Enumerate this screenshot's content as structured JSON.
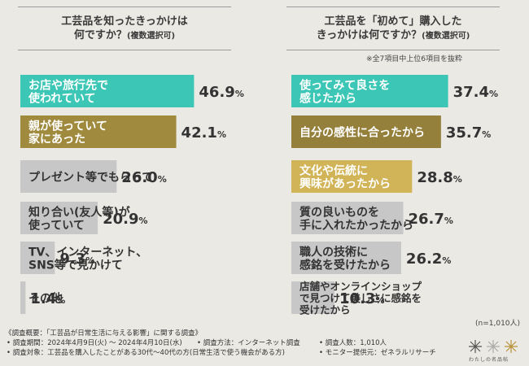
{
  "titles": {
    "left_line1": "工芸品を知ったきっかけは",
    "left_line2": "何ですか？",
    "left_suffix": "(複数選択可)",
    "right_line1": "工芸品を「初めて」購入した",
    "right_line2": "きっかけは何ですか？",
    "right_suffix": "(複数選択可)"
  },
  "notes": {
    "top7": "※全7項目中上位6項目を抜粋",
    "n": "(n=1,010人)"
  },
  "colors": {
    "rank1": "#3cc6b5",
    "rank2": "#9f8a3e",
    "rank2_right": "#94803a",
    "rank3_right": "#d1b457",
    "other": "#c7c7c7",
    "background": "#ebe9e4"
  },
  "chart_data": [
    {
      "type": "bar",
      "orientation": "horizontal",
      "title": "工芸品を知ったきっかけは何ですか？(複数選択可)",
      "categories": [
        [
          "お店や旅行先で",
          "使われていて"
        ],
        [
          "親が使っていて",
          "家にあった"
        ],
        [
          "プレゼント等でもらって"
        ],
        [
          "知り合い(友人等)が",
          "使っていて"
        ],
        [
          "TV、インターネット、",
          "SNS等で見かけて"
        ],
        [
          "その他"
        ]
      ],
      "values": [
        46.9,
        42.1,
        26.0,
        20.9,
        9.3,
        1.4
      ],
      "value_labels": [
        "46.9",
        "42.1",
        "26.0",
        "20.9",
        "9.3",
        "1.4"
      ],
      "unit": "%"
    },
    {
      "type": "bar",
      "orientation": "horizontal",
      "title": "工芸品を「初めて」購入したきっかけは何ですか？(複数選択可)",
      "categories": [
        [
          "使ってみて良さを",
          "感じたから"
        ],
        [
          "自分の感性に合ったから"
        ],
        [
          "文化や伝統に",
          "興味があったから"
        ],
        [
          "質の良いものを",
          "手に入れたかったから"
        ],
        [
          "職人の技術に",
          "感銘を受けたから"
        ],
        [
          "店舗やオンラインショップ",
          "で見つけて美しさに感銘を",
          "受けたから"
        ]
      ],
      "values": [
        37.4,
        35.7,
        28.8,
        26.7,
        26.2,
        10.3
      ],
      "value_labels": [
        "37.4",
        "35.7",
        "28.8",
        "26.7",
        "26.2",
        "10.3"
      ],
      "unit": "%"
    }
  ],
  "footer": {
    "line1": "《調査概要：「工芸品が日常生活に与える影響」に関する調査》",
    "period": "• 調査期間：2024年4月9日(火) ～ 2024年4月10日(水)",
    "method": "• 調査方法：インターネット調査",
    "count": "• 調査人数：1,010人",
    "target": "• 調査対象：工芸品を購入したことがある30代～40代の方(日常生活で使う機会がある方)",
    "provider": "• モニター提供元：ゼネラルリサーチ",
    "logo_text": "わたしの名品帖"
  }
}
